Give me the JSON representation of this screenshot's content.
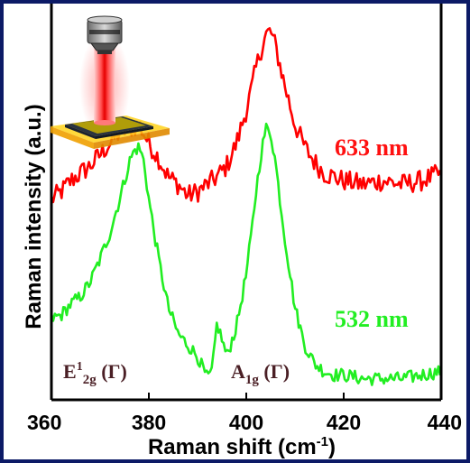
{
  "chart_data": {
    "type": "line",
    "xlabel": "Raman shift (cm-1)",
    "xlabel_main": "Raman shift (cm",
    "xlabel_sup": "-1",
    "xlabel_close": ")",
    "ylabel": "Raman intensity (a.u.)",
    "xlim": [
      360,
      440
    ],
    "ylim": [
      0,
      1
    ],
    "xticks": [
      360,
      380,
      400,
      420,
      440
    ],
    "xtick_labels": [
      "360",
      "380",
      "400",
      "420",
      "440"
    ],
    "y_tick_labels_shown": false,
    "grid": false,
    "annotations": {
      "e2g": {
        "text": "E12g (Γ)",
        "main": "E",
        "sup": "1",
        "sub": "2g",
        "rest": " (Γ)"
      },
      "a1g": {
        "text": "A1g (Γ)",
        "main": "A",
        "sub": "1g",
        "rest": " (Γ)"
      }
    },
    "series": [
      {
        "name": "633 nm",
        "color": "#ff0000",
        "x": [
          360,
          362,
          364,
          366,
          368,
          370,
          372,
          374,
          376,
          378,
          380,
          382,
          384,
          386,
          388,
          390,
          392,
          394,
          396,
          398,
          400,
          401,
          402,
          403,
          404,
          405,
          406,
          408,
          410,
          412,
          414,
          416,
          418,
          420,
          424,
          428,
          432,
          436,
          440
        ],
        "y": [
          0.51,
          0.53,
          0.56,
          0.58,
          0.6,
          0.63,
          0.66,
          0.69,
          0.7,
          0.71,
          0.66,
          0.62,
          0.57,
          0.55,
          0.52,
          0.53,
          0.55,
          0.57,
          0.6,
          0.66,
          0.75,
          0.8,
          0.86,
          0.91,
          0.95,
          0.96,
          0.92,
          0.81,
          0.71,
          0.65,
          0.61,
          0.58,
          0.57,
          0.56,
          0.55,
          0.56,
          0.55,
          0.56,
          0.58
        ]
      },
      {
        "name": "532 nm",
        "color": "#22ee22",
        "x": [
          360,
          362,
          364,
          366,
          368,
          370,
          372,
          374,
          375,
          376,
          377,
          378,
          379,
          380,
          382,
          384,
          386,
          388,
          390,
          392,
          393,
          394,
          396,
          398,
          400,
          401,
          402,
          403,
          404,
          405,
          406,
          407,
          408,
          410,
          412,
          414,
          416,
          418,
          420,
          424,
          428,
          432,
          436,
          440
        ],
        "y": [
          0.19,
          0.2,
          0.23,
          0.25,
          0.29,
          0.35,
          0.42,
          0.51,
          0.56,
          0.61,
          0.64,
          0.65,
          0.61,
          0.51,
          0.35,
          0.22,
          0.15,
          0.12,
          0.09,
          0.03,
          0.05,
          0.18,
          0.09,
          0.17,
          0.31,
          0.41,
          0.53,
          0.63,
          0.7,
          0.69,
          0.61,
          0.5,
          0.4,
          0.22,
          0.12,
          0.07,
          0.05,
          0.04,
          0.04,
          0.03,
          0.03,
          0.03,
          0.04,
          0.05
        ]
      }
    ]
  }
}
